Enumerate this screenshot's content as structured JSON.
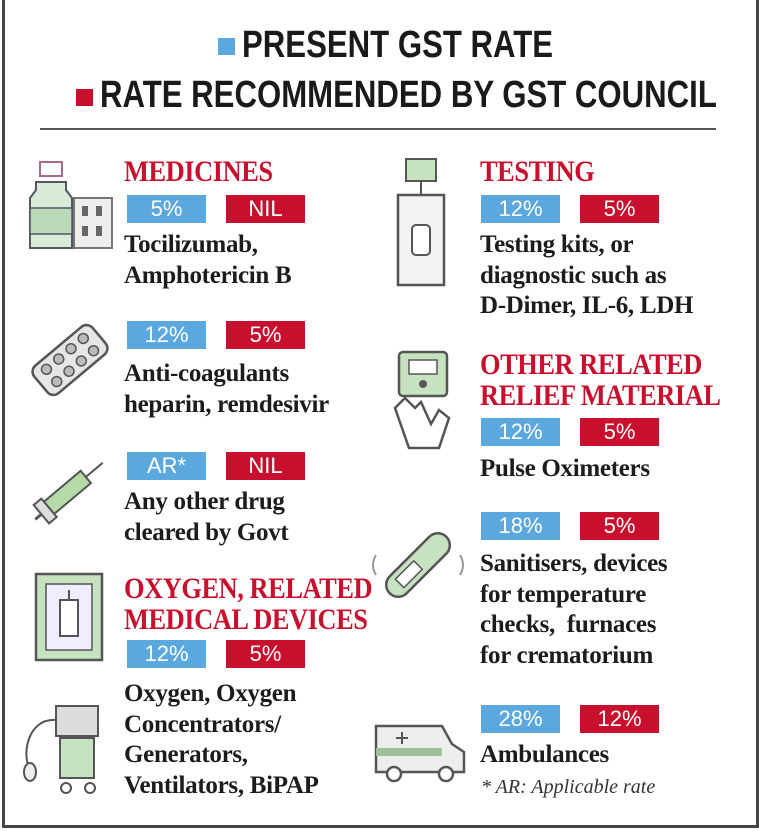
{
  "legend": {
    "present_label": "PRESENT GST RATE",
    "recommended_label": "RATE RECOMMENDED BY GST COUNCIL",
    "present_color": "#5ba8de",
    "recommended_color": "#c8102e"
  },
  "left": {
    "medicines": {
      "heading": "MEDICINES",
      "icon": "medicine-bottle-and-pills-icon",
      "present": "5%",
      "recommended": "NIL",
      "lines": [
        "Tocilizumab,",
        "Amphotericin B"
      ]
    },
    "anticoagulants": {
      "icon": "pill-strip-icon",
      "present": "12%",
      "recommended": "5%",
      "lines": [
        "Anti-coagulants",
        "heparin, remdesivir"
      ]
    },
    "other_drug": {
      "icon": "syringe-icon",
      "present": "AR*",
      "recommended": "NIL",
      "lines": [
        "Any other drug",
        "cleared by Govt"
      ]
    },
    "oxygen": {
      "heading_lines": [
        "OXYGEN, RELATED",
        "MEDICAL DEVICES"
      ],
      "icon": "oxygen-concentrator-icon",
      "icon2": "ventilator-icon",
      "present": "12%",
      "recommended": "5%",
      "lines": [
        "Oxygen, Oxygen",
        "Concentrators/",
        "Generators,",
        "Ventilators, BiPAP"
      ]
    }
  },
  "right": {
    "testing": {
      "heading": "TESTING",
      "icon": "test-kit-icon",
      "present": "12%",
      "recommended": "5%",
      "lines": [
        "Testing kits, or",
        "diagnostic such as",
        "D-Dimer, IL-6, LDH"
      ]
    },
    "relief": {
      "heading_lines": [
        "OTHER RELATED",
        "RELIEF MATERIAL"
      ],
      "icon": "pulse-oximeter-icon",
      "present": "12%",
      "recommended": "5%",
      "lines": [
        "Pulse Oximeters"
      ]
    },
    "sanitisers": {
      "icon": "thermometer-icon",
      "present": "18%",
      "recommended": "5%",
      "lines": [
        "Sanitisers, devices",
        "for temperature",
        "checks,  furnaces",
        "for crematorium"
      ]
    },
    "ambulances": {
      "icon": "ambulance-icon",
      "present": "28%",
      "recommended": "12%",
      "lines": [
        "Ambulances"
      ]
    }
  },
  "footnote": "* AR: Applicable rate"
}
